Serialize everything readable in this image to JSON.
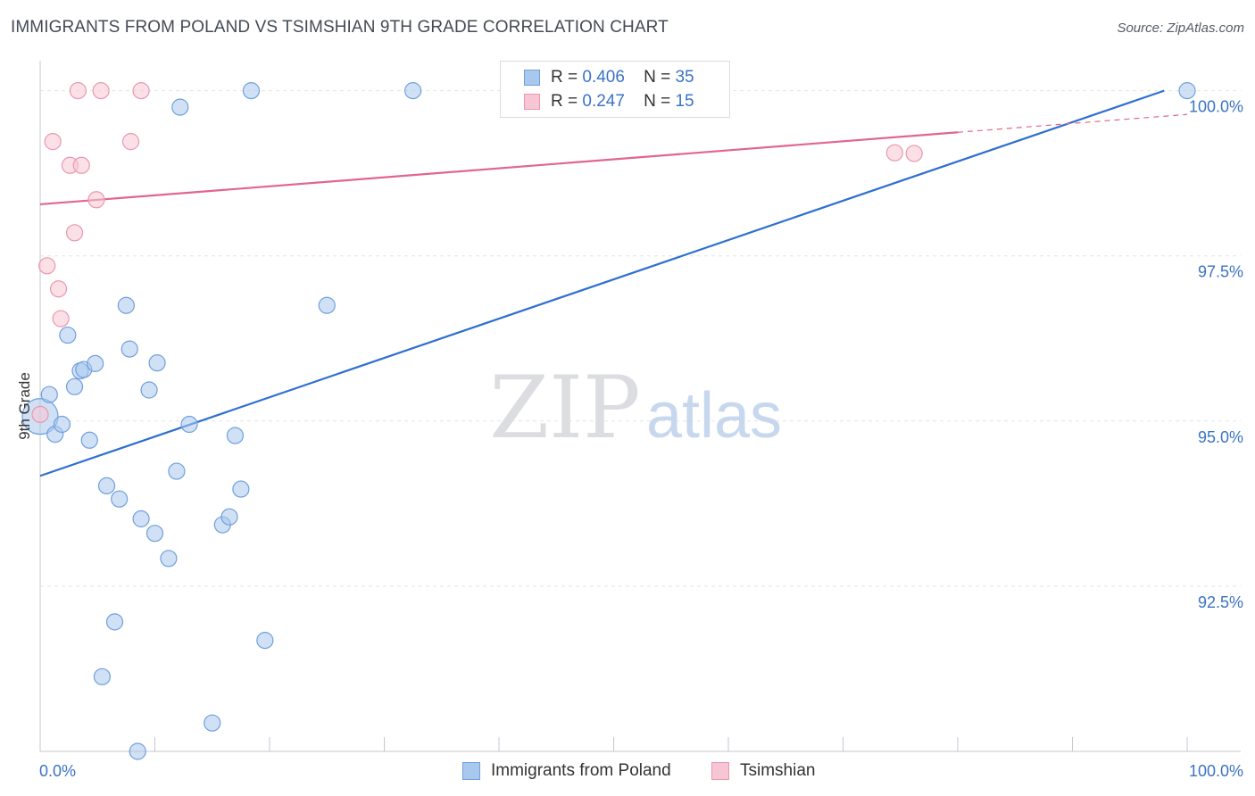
{
  "title": "IMMIGRANTS FROM POLAND VS TSIMSHIAN 9TH GRADE CORRELATION CHART",
  "source": "Source: ZipAtlas.com",
  "watermark": {
    "zip": "ZIP",
    "atlas": "atlas"
  },
  "legend": {
    "r_label": "R =",
    "n_label": "N =",
    "rows": [
      {
        "r": "0.406",
        "n": "35",
        "color": "#a9c8ee",
        "border": "#6f9fdc"
      },
      {
        "r": "0.247",
        "n": "15",
        "color": "#f7c6d4",
        "border": "#e997b0"
      }
    ]
  },
  "chart_data": {
    "type": "scatter",
    "ylabel": "9th Grade",
    "xlabel": "",
    "xlim": [
      0,
      100
    ],
    "ylim": [
      90.0,
      100.4
    ],
    "x_tick_labels": [
      "0.0%",
      "100.0%"
    ],
    "y_ticks": [
      {
        "value": 92.5,
        "label": "92.5%"
      },
      {
        "value": 95.0,
        "label": "95.0%"
      },
      {
        "value": 97.5,
        "label": "97.5%"
      },
      {
        "value": 100.0,
        "label": "100.0%"
      }
    ],
    "series": [
      {
        "name": "Immigrants from Poland",
        "color": "#a9c8ee",
        "stroke": "#6f9fdc",
        "line_color": "#2e6fd0",
        "trend": {
          "x": [
            0,
            98
          ],
          "y": [
            94.17,
            100.0
          ]
        },
        "points": [
          {
            "x": 0.0,
            "y": 95.07,
            "big": true
          },
          {
            "x": 0.8,
            "y": 95.4
          },
          {
            "x": 1.3,
            "y": 94.8
          },
          {
            "x": 1.9,
            "y": 94.95
          },
          {
            "x": 2.4,
            "y": 96.3
          },
          {
            "x": 3.0,
            "y": 95.52
          },
          {
            "x": 3.5,
            "y": 95.76
          },
          {
            "x": 3.8,
            "y": 95.78
          },
          {
            "x": 4.3,
            "y": 94.71
          },
          {
            "x": 4.8,
            "y": 95.87
          },
          {
            "x": 5.8,
            "y": 94.02
          },
          {
            "x": 6.5,
            "y": 91.96
          },
          {
            "x": 6.9,
            "y": 93.82
          },
          {
            "x": 5.4,
            "y": 91.13
          },
          {
            "x": 7.5,
            "y": 96.75
          },
          {
            "x": 7.8,
            "y": 96.09
          },
          {
            "x": 8.5,
            "y": 90.0
          },
          {
            "x": 8.8,
            "y": 93.52
          },
          {
            "x": 9.5,
            "y": 95.47
          },
          {
            "x": 10.0,
            "y": 93.3
          },
          {
            "x": 10.2,
            "y": 95.88
          },
          {
            "x": 11.2,
            "y": 92.92
          },
          {
            "x": 11.9,
            "y": 94.24
          },
          {
            "x": 12.2,
            "y": 99.75
          },
          {
            "x": 13.0,
            "y": 94.95
          },
          {
            "x": 15.0,
            "y": 90.43
          },
          {
            "x": 15.9,
            "y": 93.43
          },
          {
            "x": 16.5,
            "y": 93.55
          },
          {
            "x": 17.0,
            "y": 94.78
          },
          {
            "x": 17.5,
            "y": 93.97
          },
          {
            "x": 18.4,
            "y": 100.0
          },
          {
            "x": 19.6,
            "y": 91.68
          },
          {
            "x": 25.0,
            "y": 96.75
          },
          {
            "x": 32.5,
            "y": 100.0
          },
          {
            "x": 100.0,
            "y": 100.0
          }
        ]
      },
      {
        "name": "Tsimshian",
        "color": "#f7c6d4",
        "stroke": "#e997b0",
        "line_color": "#e0668f",
        "trend": {
          "x": [
            0,
            80
          ],
          "y": [
            98.28,
            99.37
          ]
        },
        "trend_dashed": {
          "x": [
            80,
            100
          ],
          "y": [
            99.37,
            99.64
          ]
        },
        "points": [
          {
            "x": 0.0,
            "y": 95.1
          },
          {
            "x": 0.6,
            "y": 97.35
          },
          {
            "x": 1.1,
            "y": 99.23
          },
          {
            "x": 1.6,
            "y": 97.0
          },
          {
            "x": 1.8,
            "y": 96.55
          },
          {
            "x": 2.6,
            "y": 98.87
          },
          {
            "x": 3.0,
            "y": 97.85
          },
          {
            "x": 3.3,
            "y": 100.0
          },
          {
            "x": 3.6,
            "y": 98.87
          },
          {
            "x": 4.9,
            "y": 98.35
          },
          {
            "x": 5.3,
            "y": 100.0
          },
          {
            "x": 7.9,
            "y": 99.23
          },
          {
            "x": 8.8,
            "y": 100.0
          },
          {
            "x": 74.5,
            "y": 99.06
          },
          {
            "x": 76.2,
            "y": 99.05
          }
        ]
      }
    ]
  }
}
